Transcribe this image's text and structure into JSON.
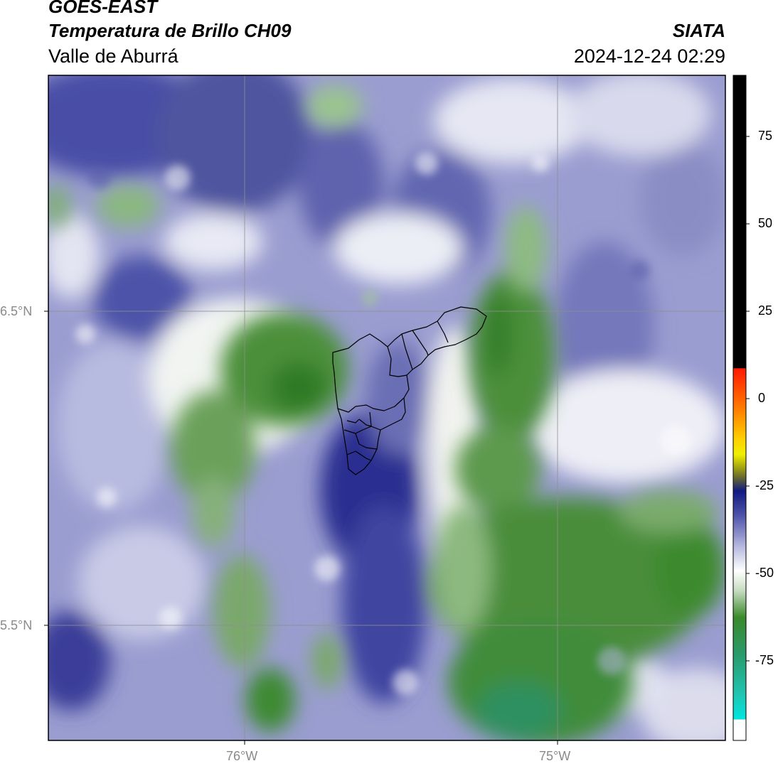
{
  "header": {
    "satellite": "GOES-EAST",
    "product": "Temperatura de Brillo CH09",
    "region": "Valle de Aburrá",
    "brand": "SIATA",
    "timestamp": "2024-12-24 02:29"
  },
  "map": {
    "lat_ticks": [
      "6.5°N",
      "5.5°N"
    ],
    "lon_ticks": [
      "76°W",
      "75°W"
    ],
    "gridline_color": "#8f8f8f",
    "boundary_color": "#000000"
  },
  "colorbar": {
    "ticks": [
      "75",
      "50",
      "25",
      "0",
      "-25",
      "-50",
      "-75"
    ],
    "colors": {
      "black": "#000000",
      "red": "#ff1a00",
      "orange": "#ff8c00",
      "yellow": "#f5f500",
      "olive": "#7a7a20",
      "navy": "#101a80",
      "slate_blue": "#4b4fa8",
      "lavender": "#b9bce0",
      "white": "#ffffff",
      "light_green": "#c5dcc0",
      "green": "#3a8a2a",
      "sea_green": "#2a9a6a",
      "cyan": "#00e5e0"
    }
  }
}
